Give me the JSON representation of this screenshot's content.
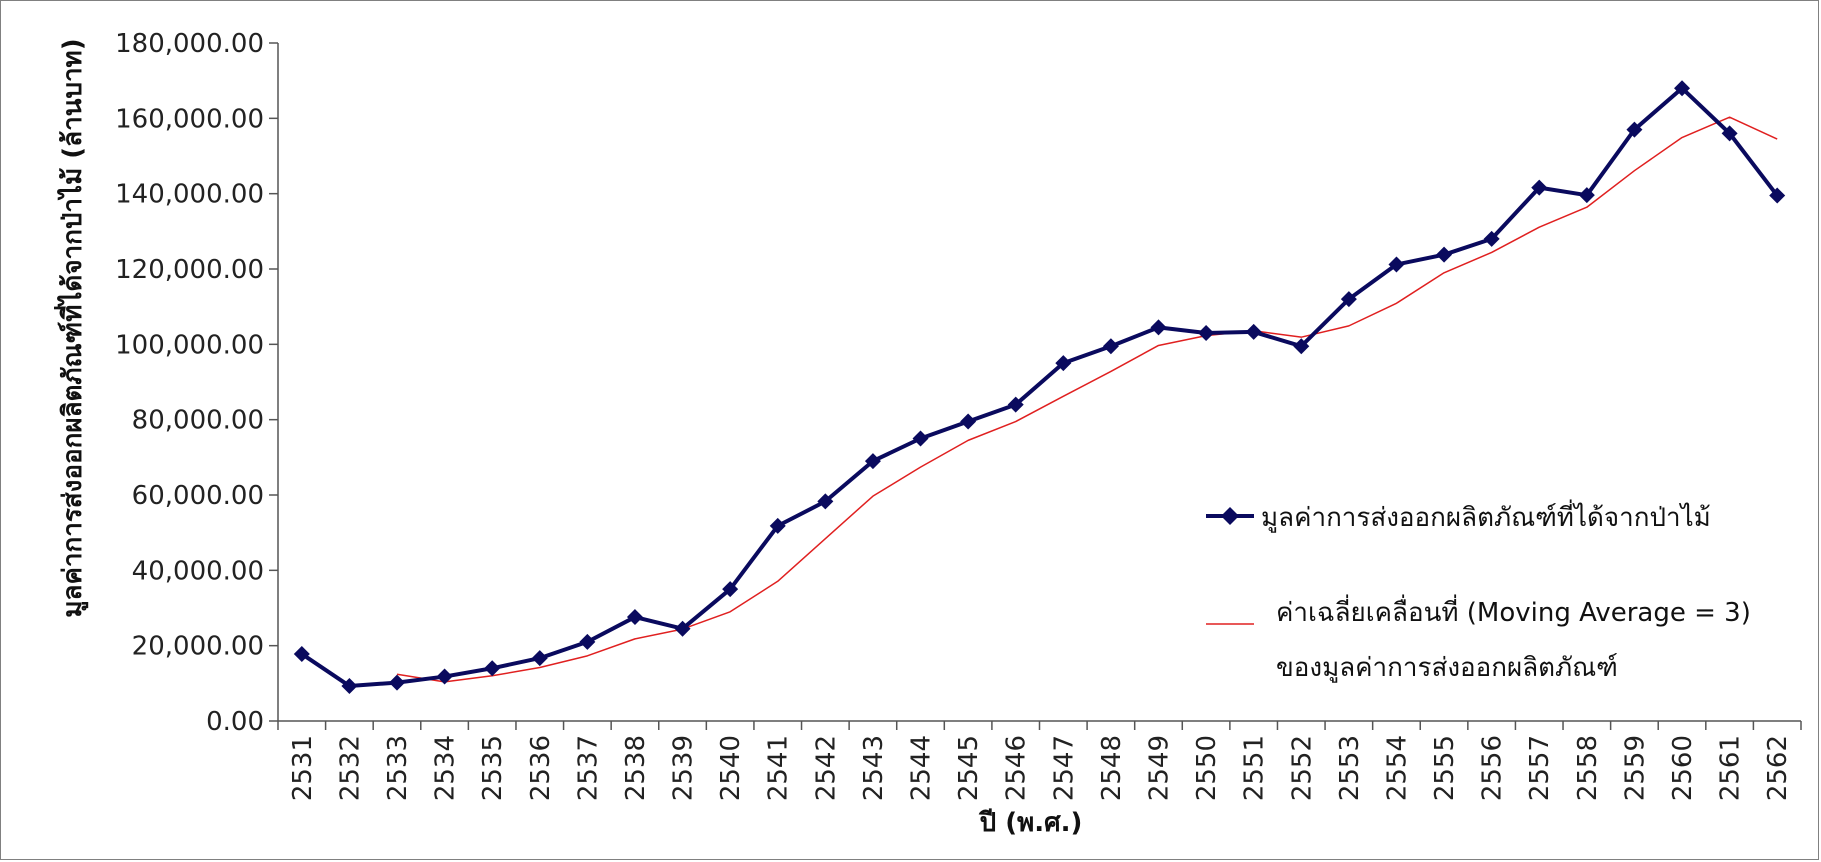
{
  "chart_data": {
    "type": "line",
    "ylabel": "มูลค่าการส่งออกผลิตภัณฑ์ที่ได้จากป่าไม้ (ล้านบาท)",
    "xlabel": "ปี (พ.ศ.)",
    "ylim": [
      0,
      180000
    ],
    "yticks": [
      "0.00",
      "20,000.00",
      "40,000.00",
      "60,000.00",
      "80,000.00",
      "100,000.00",
      "120,000.00",
      "140,000.00",
      "160,000.00",
      "180,000.00"
    ],
    "ytick_values": [
      0,
      20000,
      40000,
      60000,
      80000,
      100000,
      120000,
      140000,
      160000,
      180000
    ],
    "x": [
      "2531",
      "2532",
      "2533",
      "2534",
      "2535",
      "2536",
      "2537",
      "2538",
      "2539",
      "2540",
      "2541",
      "2542",
      "2543",
      "2544",
      "2545",
      "2546",
      "2547",
      "2548",
      "2549",
      "2550",
      "2551",
      "2552",
      "2553",
      "2554",
      "2555",
      "2556",
      "2557",
      "2558",
      "2559",
      "2560",
      "2561",
      "2562"
    ],
    "grid": false,
    "legend_position": "right",
    "series": [
      {
        "name": "มูลค่าการส่งออกผลิตภัณฑ์ที่ได้จากป่าไม้",
        "color": "#0a0a5e",
        "marker": "diamond",
        "values": [
          17800,
          9300,
          10200,
          11800,
          14000,
          16700,
          21000,
          27600,
          24500,
          35000,
          51800,
          58300,
          69000,
          75000,
          79500,
          84000,
          95000,
          99500,
          104500,
          103000,
          103300,
          99500,
          112000,
          121200,
          123800,
          128000,
          141600,
          139600,
          157000,
          168000,
          156000,
          139500
        ]
      },
      {
        "name_lines": [
          "ค่าเฉลี่ยเคลื่อนที่ (Moving Average = 3)",
          "ของมูลค่าการส่งออกผลิตภัณฑ์"
        ],
        "color": "#e02020",
        "marker": "none",
        "values": [
          null,
          null,
          12400,
          10400,
          12000,
          14200,
          17300,
          21800,
          24400,
          29000,
          37100,
          48400,
          59700,
          67400,
          74500,
          79500,
          86200,
          92800,
          99700,
          102300,
          103600,
          101900,
          104900,
          110900,
          119000,
          124400,
          131100,
          136400,
          146100,
          154900,
          160300,
          154500
        ]
      }
    ]
  }
}
